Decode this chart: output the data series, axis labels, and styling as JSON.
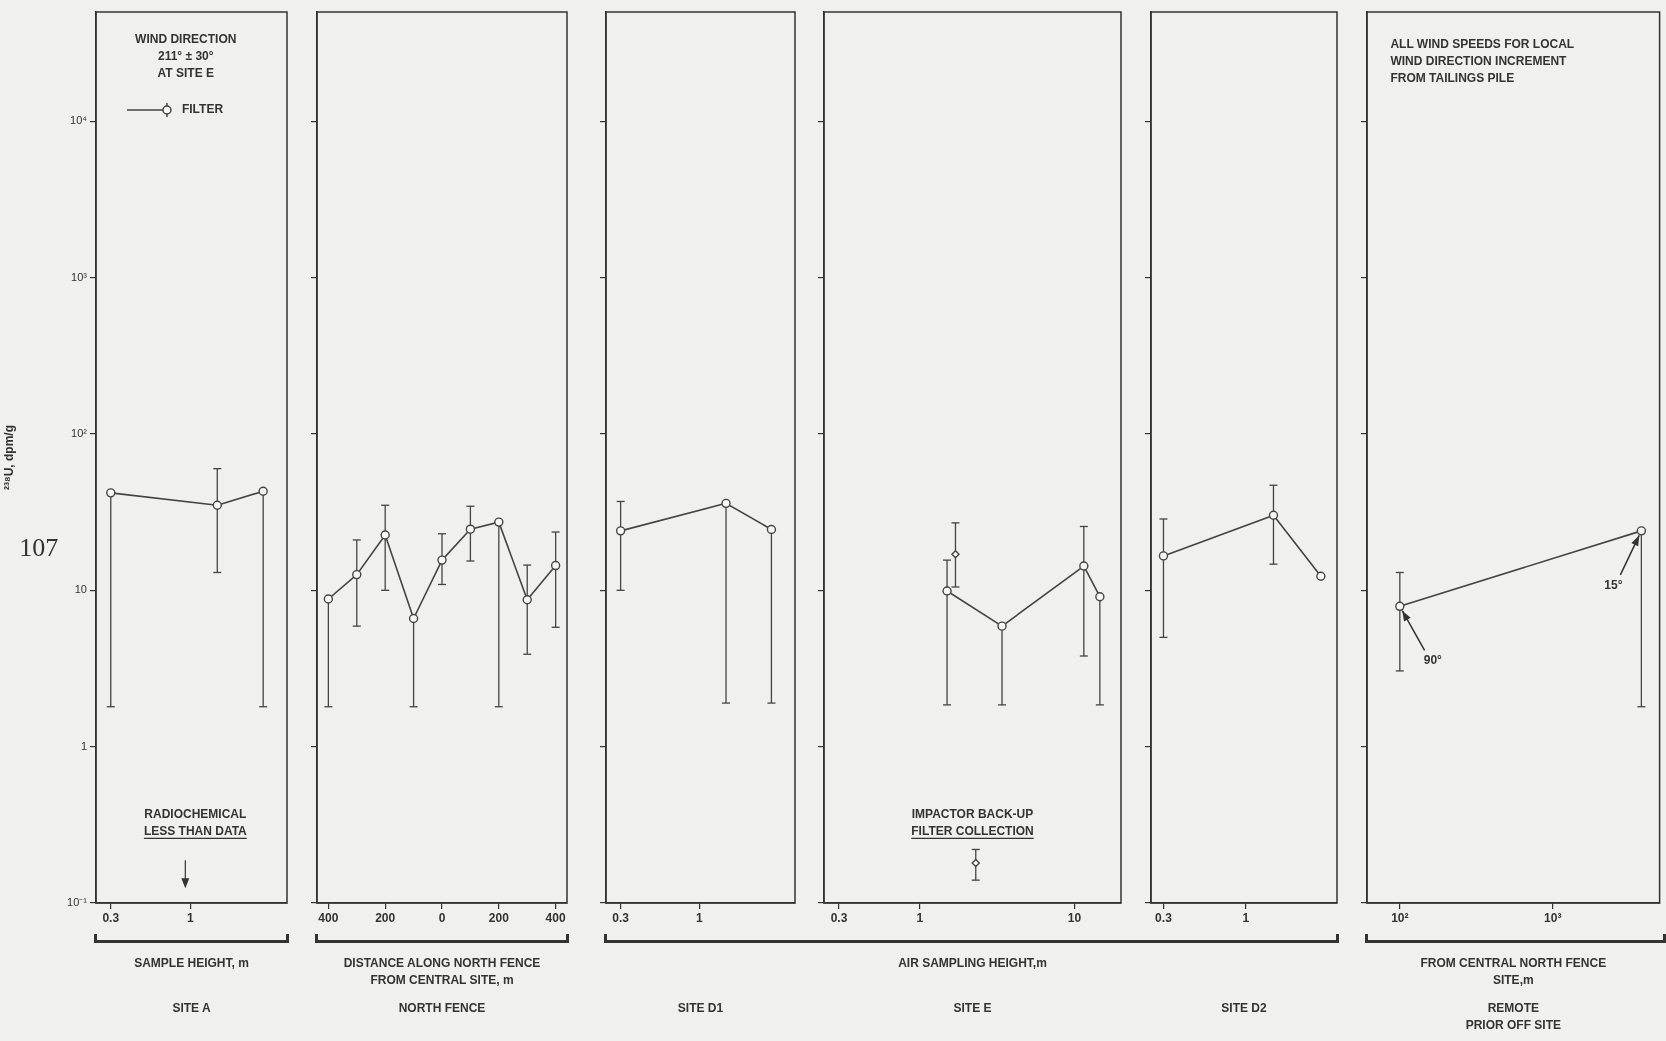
{
  "chart_data": [
    {
      "type": "line",
      "title": "SITE A",
      "xlabel": "SAMPLE HEIGHT, m",
      "ylabel": "²³⁸U, dpm/g",
      "legend": "top",
      "marker": "circle",
      "log": "xy",
      "grid": false,
      "xlim": [
        0.24,
        4.3
      ],
      "xticks": [
        0.3,
        1
      ],
      "ylim": [
        0.1,
        50000
      ],
      "yticks": [
        {
          "value": 0.1,
          "label": "10⁻¹"
        },
        1,
        10,
        {
          "value": 100,
          "label": "10²"
        },
        {
          "value": 1000,
          "label": "10³"
        },
        {
          "value": 10000,
          "label": "10⁴"
        }
      ],
      "annotations": [
        "WIND DIRECTION\n211° ± 30°\nAT SITE E",
        "RADIOCHEMICAL\nLESS THAN DATA",
        "107"
      ],
      "series": [
        {
          "name": "FILTER",
          "color": "#444444",
          "x": [
            0.3,
            1.5,
            3
          ],
          "values": [
            42,
            35,
            43
          ],
          "errors": [
            [
              1.8,
              42
            ],
            [
              13,
              60
            ],
            [
              1.8,
              43
            ]
          ]
        }
      ]
    },
    {
      "type": "line",
      "title": "NORTH FENCE",
      "xlabel": "DISTANCE ALONG NORTH FENCE\nFROM CENTRAL SITE, m",
      "marker": "circle",
      "log": "y",
      "grid": false,
      "tick_labels": "x",
      "xlim": [
        -440,
        440
      ],
      "xticks": [
        {
          "value": -400,
          "label": "400"
        },
        {
          "value": -200,
          "label": "200"
        },
        0,
        200,
        400
      ],
      "ylim": [
        0.1,
        50000
      ],
      "yticks": [
        0.1,
        1,
        10,
        100,
        1000,
        10000
      ],
      "series": [
        {
          "color": "#444444",
          "x": [
            -400,
            -300,
            -200,
            -100,
            0,
            100,
            200,
            300,
            400
          ],
          "values": [
            8.8,
            12.6,
            22.6,
            6.6,
            15.6,
            24.6,
            27.3,
            8.7,
            14.4
          ],
          "errors": [
            [
              1.8,
              8.8
            ],
            [
              5.9,
              21
            ],
            [
              10,
              35
            ],
            [
              1.8,
              6.6
            ],
            [
              10.9,
              23
            ],
            [
              15.4,
              34.5
            ],
            [
              1.8,
              27.3
            ],
            [
              3.9,
              14.5
            ],
            [
              5.8,
              23.6
            ]
          ]
        }
      ]
    },
    {
      "type": "line",
      "title": "SITE D1",
      "marker": "circle",
      "log": "xy",
      "grid": false,
      "tick_labels": "x",
      "xlim": [
        0.24,
        4.3
      ],
      "xticks": [
        0.3,
        1
      ],
      "ylim": [
        0.1,
        50000
      ],
      "yticks": [
        0.1,
        1,
        10,
        100,
        1000,
        10000
      ],
      "series": [
        {
          "color": "#444444",
          "x": [
            0.3,
            1.5,
            3
          ],
          "values": [
            24,
            36,
            24.5
          ],
          "errors": [
            [
              10,
              37
            ],
            [
              1.9,
              36
            ],
            [
              1.9,
              24.5
            ]
          ]
        }
      ]
    },
    {
      "type": "line",
      "title": "SITE E",
      "xlabel": "AIR SAMPLING HEIGHT,m",
      "marker": "circle",
      "log": "xy",
      "grid": false,
      "tick_labels": "x",
      "xlim": [
        0.24,
        20
      ],
      "xticks": [
        0.3,
        1,
        10
      ],
      "ylim": [
        0.1,
        50000
      ],
      "yticks": [
        0.1,
        1,
        10,
        100,
        1000,
        10000
      ],
      "annotations": [
        "IMPACTOR BACK-UP\nFILTER COLLECTION"
      ],
      "series": [
        {
          "color": "#444444",
          "x": [
            1.5,
            3.4,
            11.5,
            14.6
          ],
          "values": [
            9.9,
            5.9,
            14.3,
            9.1
          ],
          "errors": [
            [
              1.85,
              15.6
            ],
            [
              1.85,
              5.9
            ],
            [
              3.8,
              25.6
            ],
            [
              1.85,
              9.1
            ]
          ]
        },
        {
          "type": "scatter",
          "marker": "diamond",
          "color": "#444444",
          "x": [
            1.7,
            2.3
          ],
          "values": [
            17,
            0.18
          ],
          "errors": [
            [
              10.5,
              27
            ],
            [
              0.14,
              0.22
            ]
          ]
        }
      ]
    },
    {
      "type": "line",
      "title": "SITE D2",
      "marker": "circle",
      "log": "xy",
      "grid": false,
      "tick_labels": "x",
      "xlim": [
        0.25,
        3.8
      ],
      "xticks": [
        0.3,
        1
      ],
      "ylim": [
        0.1,
        50000
      ],
      "yticks": [
        0.1,
        1,
        10,
        100,
        1000,
        10000
      ],
      "series": [
        {
          "color": "#444444",
          "x": [
            0.3,
            1.5,
            3
          ],
          "values": [
            16.6,
            30.2,
            12.3
          ],
          "errors": [
            [
              5,
              28.6
            ],
            [
              14.7,
              47
            ],
            null
          ]
        }
      ]
    },
    {
      "type": "line",
      "title": "REMOTE\nPRIOR OFF SITE",
      "xlabel": "FROM CENTRAL NORTH FENCE\nSITE,m",
      "marker": "circle",
      "log": "xy",
      "grid": false,
      "tick_labels": "x",
      "xlim": [
        61,
        5000
      ],
      "xticks": [
        {
          "value": 100,
          "label": "10²"
        },
        {
          "value": 1000,
          "label": "10³"
        }
      ],
      "ylim": [
        0.1,
        50000
      ],
      "yticks": [
        0.1,
        1,
        10,
        100,
        1000,
        10000
      ],
      "annotations": [
        "ALL WIND SPEEDS FOR LOCAL\nWIND DIRECTION INCREMENT\nFROM TAILINGS PILE",
        {
          "text": "90°",
          "x": 100,
          "y": 7.9
        },
        {
          "text": "15°",
          "x": 3800,
          "y": 24
        }
      ],
      "series": [
        {
          "color": "#444444",
          "x": [
            100,
            3800
          ],
          "values": [
            7.9,
            24
          ],
          "errors": [
            [
              3.05,
              13
            ],
            [
              1.8,
              24
            ]
          ]
        }
      ]
    }
  ]
}
